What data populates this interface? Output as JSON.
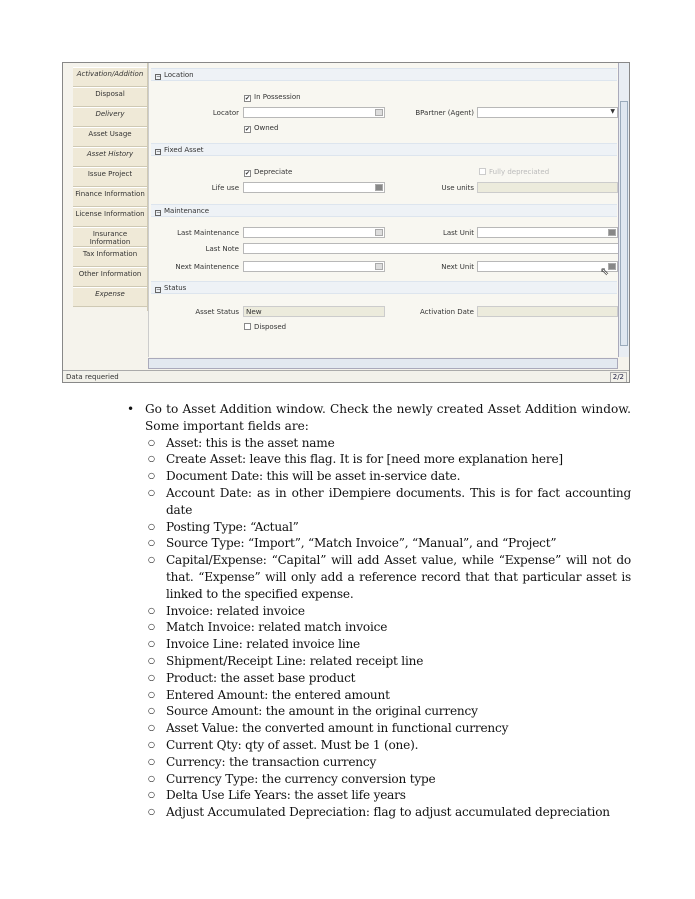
{
  "screenshot": {
    "tabs": [
      {
        "label": "Activation/Addition",
        "italic": true
      },
      {
        "label": "Disposal",
        "italic": false
      },
      {
        "label": "Delivery",
        "italic": true
      },
      {
        "label": "Asset Usage",
        "italic": false
      },
      {
        "label": "Asset History",
        "italic": true
      },
      {
        "label": "Issue Project",
        "italic": false
      },
      {
        "label": "Finance Information",
        "italic": false
      },
      {
        "label": "License Information",
        "italic": false
      },
      {
        "label": "Insurance Information",
        "italic": false
      },
      {
        "label": "Tax Information",
        "italic": false
      },
      {
        "label": "Other Information",
        "italic": false
      },
      {
        "label": "Expense",
        "italic": true
      }
    ],
    "sections": {
      "location": "Location",
      "fixed_asset": "Fixed Asset",
      "maintenance": "Maintenance",
      "status": "Status"
    },
    "fields": {
      "in_possession": {
        "label": "In Possession",
        "checked": true
      },
      "locator": {
        "label": "Locator",
        "value": ""
      },
      "bpartner": {
        "label": "BPartner (Agent)",
        "value": ""
      },
      "owned": {
        "label": "Owned",
        "checked": true
      },
      "depreciate": {
        "label": "Depreciate",
        "checked": true
      },
      "fully_depreciated": {
        "label": "Fully depreciated",
        "checked": false
      },
      "life_use": {
        "label": "Life use",
        "value": ""
      },
      "use_units": {
        "label": "Use units",
        "value": ""
      },
      "last_maintenance": {
        "label": "Last Maintenance",
        "value": ""
      },
      "last_unit": {
        "label": "Last Unit",
        "value": ""
      },
      "last_note": {
        "label": "Last Note",
        "value": ""
      },
      "next_maintenence": {
        "label": "Next Maintenence",
        "value": ""
      },
      "next_unit": {
        "label": "Next Unit",
        "value": ""
      },
      "asset_status": {
        "label": "Asset Status",
        "value": "New"
      },
      "activation_date": {
        "label": "Activation Date",
        "value": ""
      },
      "disposed": {
        "label": "Disposed",
        "checked": false
      }
    },
    "status_text": "Data requeried",
    "page_indicator": "2/2"
  },
  "document": {
    "intro": "Go to Asset Addition window. Check the newly created Asset Addition window. Some important fields are:",
    "items": [
      "Asset: this is the asset name",
      "Create Asset: leave this flag. It is for [need more explanation here]",
      "Document Date: this will be asset in-service date.",
      "Account Date: as in other iDempiere documents. This is for fact accounting date",
      "Posting Type: “Actual”",
      "Source Type: “Import”, “Match Invoice”, “Manual”, and “Project”",
      "Capital/Expense: “Capital” will add Asset value, while “Expense” will not do that. “Expense” will only add a reference record that that particular asset is linked to the specified expense.",
      "Invoice: related invoice",
      "Match Invoice: related match invoice",
      "Invoice Line: related invoice line",
      "Shipment/Receipt Line: related receipt line",
      "Product: the asset base product",
      "Entered Amount: the entered amount",
      "Source Amount: the amount in the original currency",
      "Asset Value: the converted amount in functional currency",
      "Current Qty: qty of asset. Must be 1 (one).",
      "Currency: the transaction currency",
      "Currency Type: the currency conversion type",
      "Delta Use Life Years: the asset life years",
      "Adjust Accumulated Depreciation: flag to adjust accumulated depreciation"
    ]
  }
}
